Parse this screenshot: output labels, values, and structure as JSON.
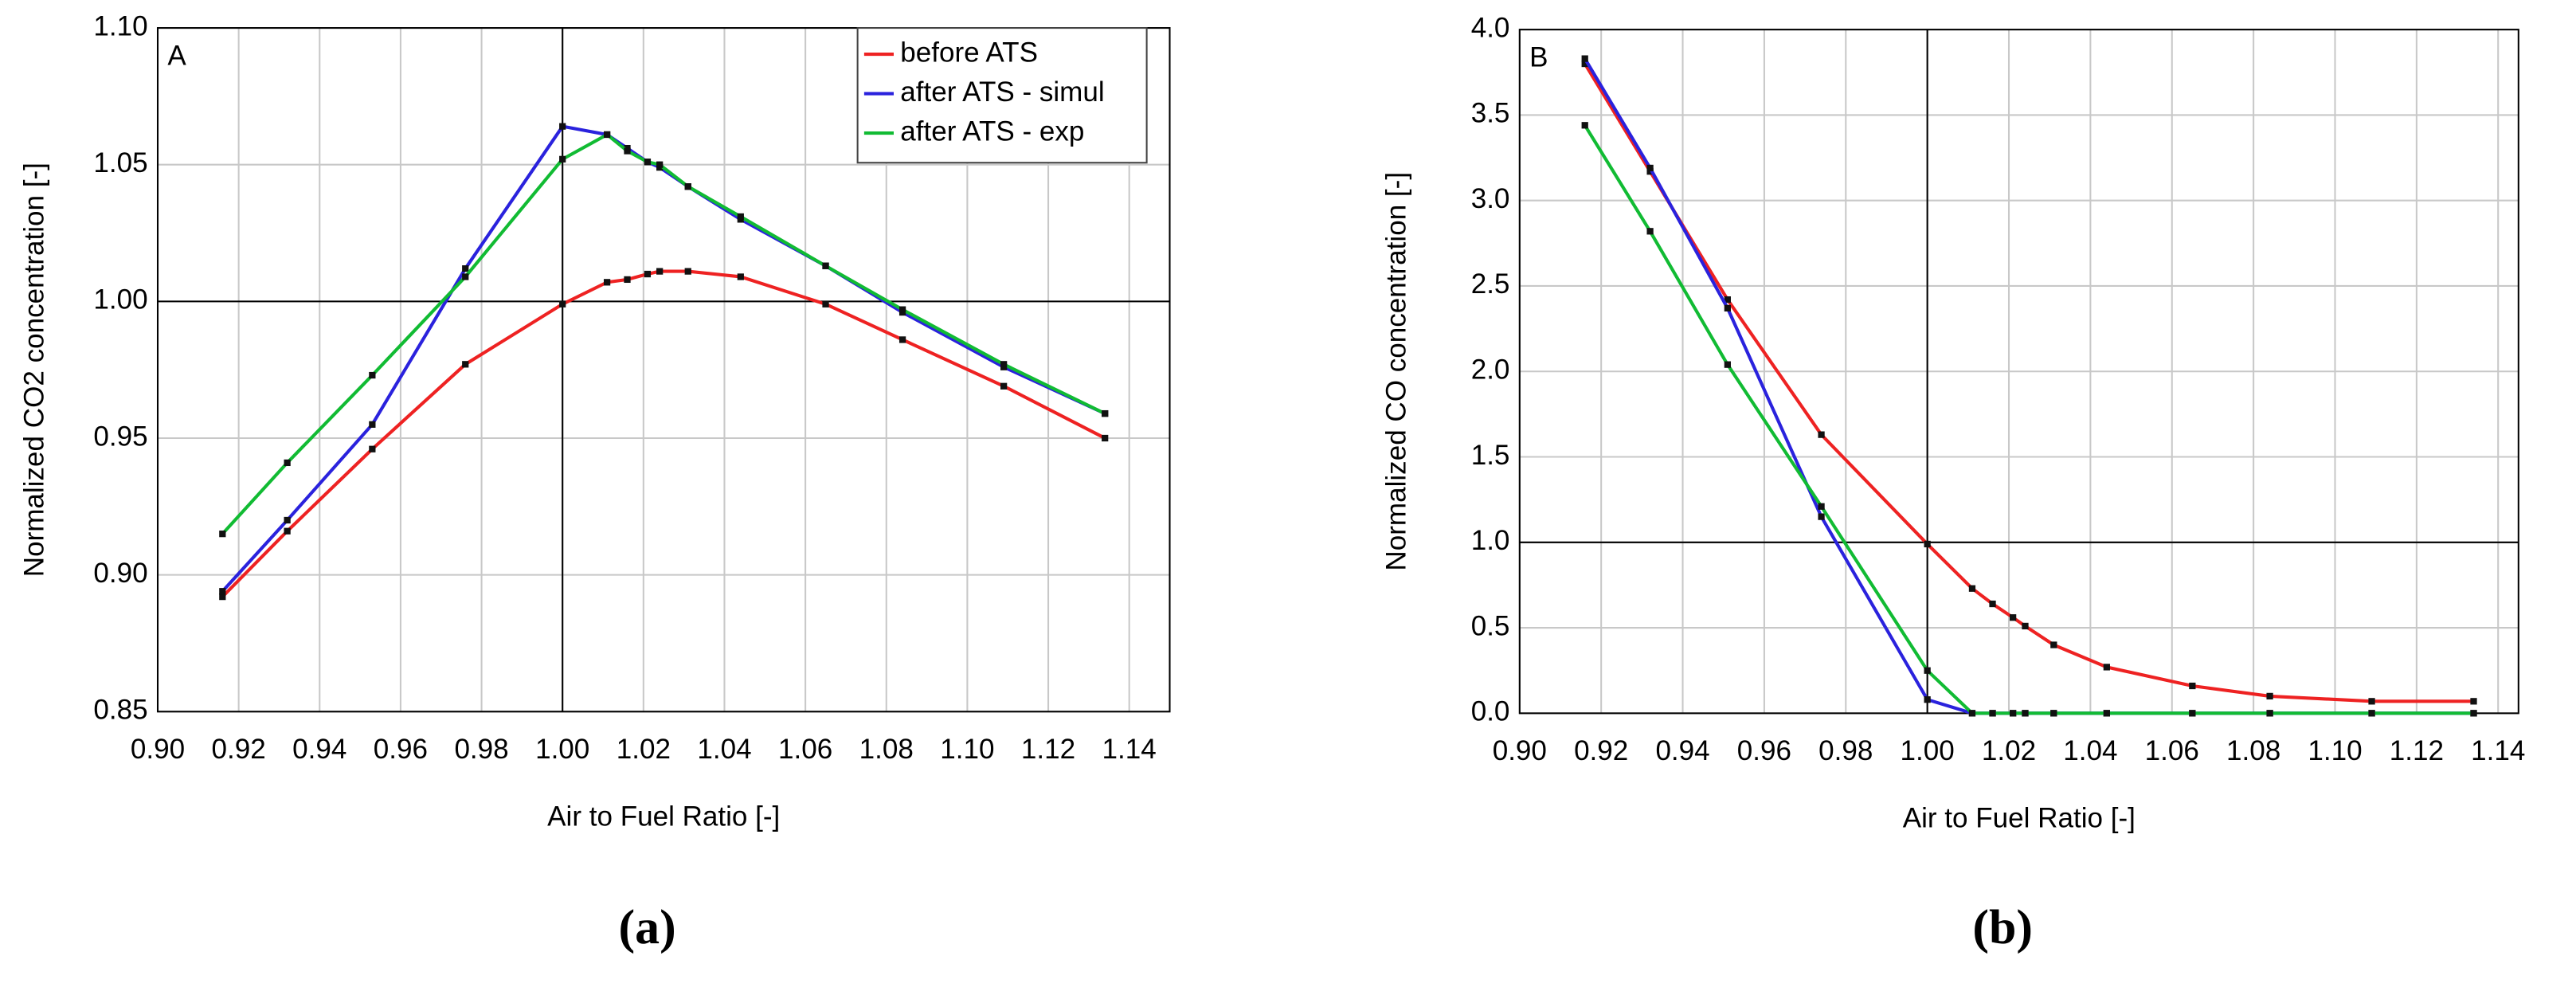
{
  "chart_data": [
    {
      "type": "line",
      "panel_label": "A",
      "caption": "(a)",
      "xlabel": "Air to Fuel Ratio [-]",
      "ylabel": "Normalized CO2 concentration [-]",
      "xlim": [
        0.9,
        1.15
      ],
      "ylim": [
        0.85,
        1.1
      ],
      "xticks": [
        {
          "value": 0.9,
          "label": "0.90"
        },
        {
          "value": 0.92,
          "label": "0.92"
        },
        {
          "value": 0.94,
          "label": "0.94"
        },
        {
          "value": 0.96,
          "label": "0.96"
        },
        {
          "value": 0.98,
          "label": "0.98"
        },
        {
          "value": 1.0,
          "label": "1.00"
        },
        {
          "value": 1.02,
          "label": "1.02"
        },
        {
          "value": 1.04,
          "label": "1.04"
        },
        {
          "value": 1.06,
          "label": "1.06"
        },
        {
          "value": 1.08,
          "label": "1.08"
        },
        {
          "value": 1.1,
          "label": "1.10"
        },
        {
          "value": 1.12,
          "label": "1.12"
        },
        {
          "value": 1.14,
          "label": "1.14"
        }
      ],
      "yticks": [
        {
          "value": 0.85,
          "label": "0.85"
        },
        {
          "value": 0.9,
          "label": "0.90"
        },
        {
          "value": 0.95,
          "label": "0.95"
        },
        {
          "value": 1.0,
          "label": "1.00"
        },
        {
          "value": 1.05,
          "label": "1.05"
        },
        {
          "value": 1.1,
          "label": "1.10"
        }
      ],
      "grid": true,
      "legend": "upper right",
      "reference_x": 1.0,
      "reference_y": 1.0,
      "x": [
        0.916,
        0.932,
        0.953,
        0.976,
        1.0,
        1.011,
        1.016,
        1.021,
        1.024,
        1.031,
        1.044,
        1.065,
        1.084,
        1.109,
        1.134
      ],
      "series": [
        {
          "name": "before ATS",
          "color": "#ee2222",
          "values": [
            0.892,
            0.916,
            0.946,
            0.977,
            0.999,
            1.007,
            1.008,
            1.01,
            1.011,
            1.011,
            1.009,
            0.999,
            0.986,
            0.969,
            0.95
          ]
        },
        {
          "name": "after ATS - simul",
          "color": "#2a22dd",
          "values": [
            0.894,
            0.92,
            0.955,
            1.012,
            1.064,
            1.061,
            1.056,
            1.051,
            1.049,
            1.042,
            1.03,
            1.013,
            0.996,
            0.976,
            0.959
          ]
        },
        {
          "name": "after ATS - exp",
          "color": "#11bb33",
          "values": [
            0.915,
            0.941,
            0.973,
            1.009,
            1.052,
            1.061,
            1.055,
            1.051,
            1.05,
            1.042,
            1.031,
            1.013,
            0.997,
            0.977,
            0.959
          ]
        }
      ]
    },
    {
      "type": "line",
      "panel_label": "B",
      "caption": "(b)",
      "xlabel": "Air to Fuel Ratio [-]",
      "ylabel": "Normalized CO concentration [-]",
      "xlim": [
        0.9,
        1.145
      ],
      "ylim": [
        0,
        4
      ],
      "xticks": [
        {
          "value": 0.9,
          "label": "0.90"
        },
        {
          "value": 0.92,
          "label": "0.92"
        },
        {
          "value": 0.94,
          "label": "0.94"
        },
        {
          "value": 0.96,
          "label": "0.96"
        },
        {
          "value": 0.98,
          "label": "0.98"
        },
        {
          "value": 1.0,
          "label": "1.00"
        },
        {
          "value": 1.02,
          "label": "1.02"
        },
        {
          "value": 1.04,
          "label": "1.04"
        },
        {
          "value": 1.06,
          "label": "1.06"
        },
        {
          "value": 1.08,
          "label": "1.08"
        },
        {
          "value": 1.1,
          "label": "1.10"
        },
        {
          "value": 1.12,
          "label": "1.12"
        },
        {
          "value": 1.14,
          "label": "1.14"
        }
      ],
      "yticks": [
        {
          "value": 0,
          "label": "0.0"
        },
        {
          "value": 0.5,
          "label": "0.5"
        },
        {
          "value": 1,
          "label": "1.0"
        },
        {
          "value": 1.5,
          "label": "1.5"
        },
        {
          "value": 2,
          "label": "2.0"
        },
        {
          "value": 2.5,
          "label": "2.5"
        },
        {
          "value": 3,
          "label": "3.0"
        },
        {
          "value": 3.5,
          "label": "3.5"
        },
        {
          "value": 4,
          "label": "4.0"
        }
      ],
      "grid": true,
      "reference_x": 1.0,
      "reference_y": 1.0,
      "x": [
        0.916,
        0.932,
        0.951,
        0.974,
        1.0,
        1.011,
        1.016,
        1.021,
        1.024,
        1.031,
        1.044,
        1.065,
        1.084,
        1.109,
        1.134
      ],
      "series": [
        {
          "name": "before ATS",
          "color": "#ee2222",
          "values": [
            3.8,
            3.17,
            2.42,
            1.63,
            0.99,
            0.73,
            0.64,
            0.56,
            0.51,
            0.4,
            0.27,
            0.16,
            0.1,
            0.07,
            0.07
          ]
        },
        {
          "name": "after ATS - simul",
          "color": "#2a22dd",
          "values": [
            3.83,
            3.19,
            2.37,
            1.15,
            0.08,
            0,
            0,
            0,
            0,
            0,
            0,
            0,
            0,
            0,
            0
          ]
        },
        {
          "name": "after ATS - exp",
          "color": "#11bb33",
          "values": [
            3.44,
            2.82,
            2.04,
            1.21,
            0.25,
            0,
            0,
            0,
            0,
            0,
            0,
            0,
            0,
            0,
            0
          ]
        }
      ]
    }
  ]
}
